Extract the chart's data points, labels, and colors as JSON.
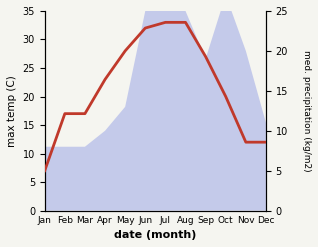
{
  "months": [
    "Jan",
    "Feb",
    "Mar",
    "Apr",
    "May",
    "Jun",
    "Jul",
    "Aug",
    "Sep",
    "Oct",
    "Nov",
    "Dec"
  ],
  "temperature": [
    7,
    17,
    17,
    23,
    28,
    32,
    33,
    33,
    27,
    20,
    12,
    12
  ],
  "precipitation": [
    8,
    8,
    8,
    10,
    13,
    25,
    34,
    25,
    19,
    27,
    20,
    11
  ],
  "temp_color": "#c0392b",
  "precip_fill_color": "#b0b8e8",
  "precip_fill_alpha": 0.7,
  "temp_ylim": [
    0,
    35
  ],
  "precip_ylim": [
    0,
    25
  ],
  "xlabel": "date (month)",
  "ylabel_left": "max temp (C)",
  "ylabel_right": "med. precipitation (kg/m2)",
  "bg_color": "#f5f5f0",
  "fig_width": 3.18,
  "fig_height": 2.47,
  "dpi": 100
}
